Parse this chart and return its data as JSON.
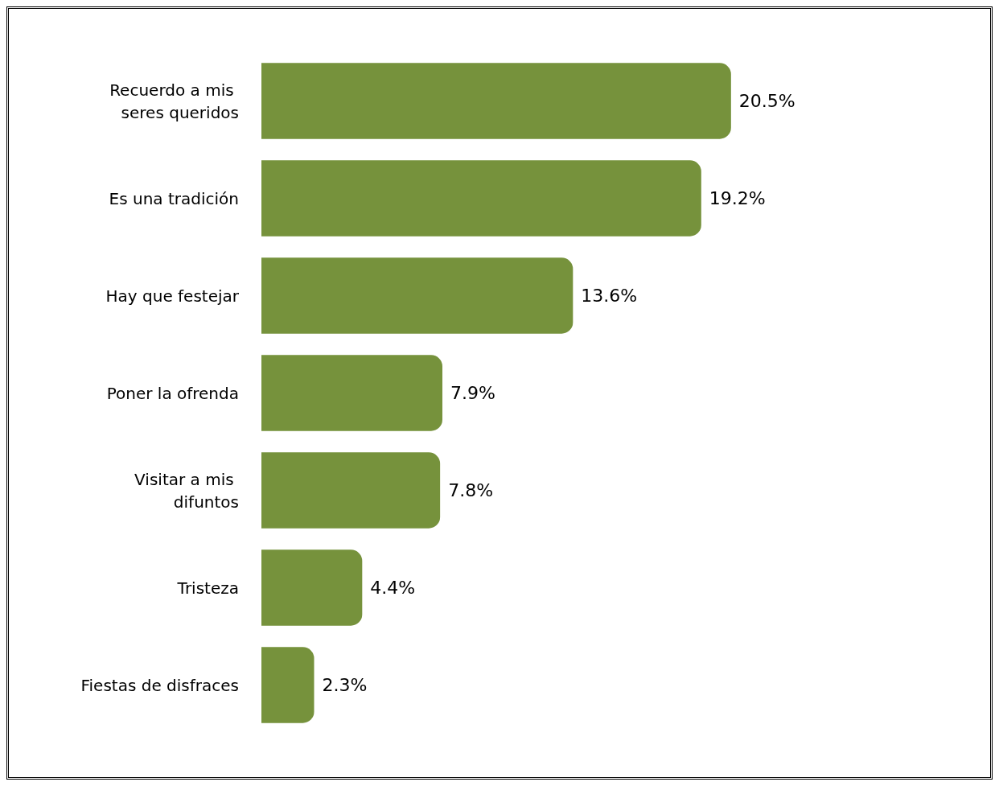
{
  "chart_data": {
    "type": "bar",
    "orientation": "horizontal",
    "categories": [
      "Recuerdo a mis seres queridos",
      "Es una tradición",
      "Hay que festejar",
      "Poner la ofrenda",
      "Visitar a mis difuntos",
      "Tristeza",
      "Fiestas de disfraces"
    ],
    "values": [
      20.5,
      19.2,
      13.6,
      7.9,
      7.8,
      4.4,
      2.3
    ],
    "value_labels": [
      "20.5%",
      "19.2%",
      "13.6%",
      "7.9%",
      "7.8%",
      "4.4%",
      "2.3%"
    ],
    "color": "#76923c",
    "grid": false,
    "tick_labels": "y"
  }
}
